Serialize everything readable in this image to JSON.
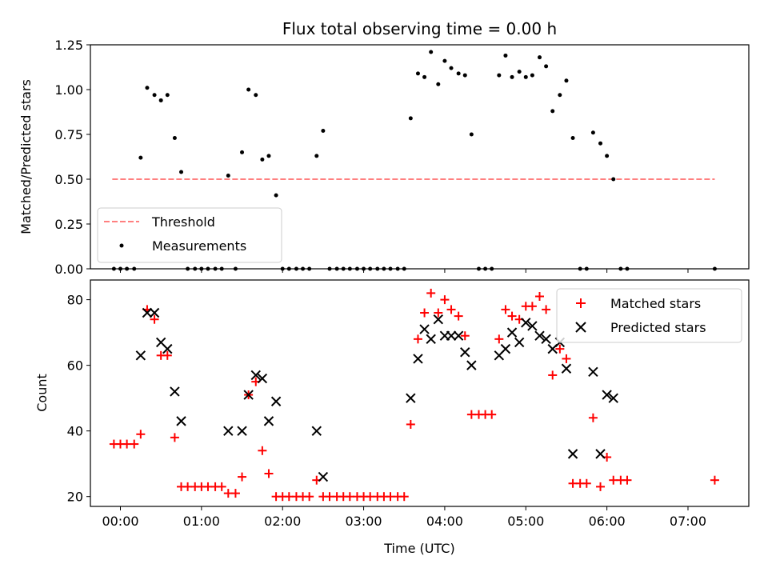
{
  "chart_data": [
    {
      "type": "scatter",
      "title": "Flux total observing time = 0.00 h",
      "xlabel": "",
      "ylabel": "Matched/Predicted stars",
      "xlim": [
        -0.37,
        7.75
      ],
      "ylim": [
        0.0,
        1.25
      ],
      "yticks": [
        "0.00",
        "0.25",
        "0.50",
        "0.75",
        "1.00",
        "1.25"
      ],
      "grid": false,
      "legend": "lower-left",
      "threshold": {
        "name": "Threshold",
        "value": 0.5,
        "x": [
          -0.1,
          7.33
        ],
        "color": "#ff8080"
      },
      "series": [
        {
          "name": "Measurements",
          "color": "#000000",
          "points": [
            [
              -0.08,
              0.0
            ],
            [
              0.0,
              0.0
            ],
            [
              0.08,
              0.0
            ],
            [
              0.17,
              0.0
            ],
            [
              0.25,
              0.62
            ],
            [
              0.33,
              1.01
            ],
            [
              0.42,
              0.97
            ],
            [
              0.5,
              0.94
            ],
            [
              0.58,
              0.97
            ],
            [
              0.67,
              0.73
            ],
            [
              0.75,
              0.54
            ],
            [
              0.83,
              0.0
            ],
            [
              0.92,
              0.0
            ],
            [
              1.0,
              0.0
            ],
            [
              1.08,
              0.0
            ],
            [
              1.17,
              0.0
            ],
            [
              1.25,
              0.0
            ],
            [
              1.33,
              0.52
            ],
            [
              1.42,
              0.0
            ],
            [
              1.5,
              0.65
            ],
            [
              1.58,
              1.0
            ],
            [
              1.67,
              0.97
            ],
            [
              1.75,
              0.61
            ],
            [
              1.83,
              0.63
            ],
            [
              1.92,
              0.41
            ],
            [
              2.0,
              0.0
            ],
            [
              2.08,
              0.0
            ],
            [
              2.17,
              0.0
            ],
            [
              2.25,
              0.0
            ],
            [
              2.33,
              0.0
            ],
            [
              2.42,
              0.63
            ],
            [
              2.5,
              0.77
            ],
            [
              2.58,
              0.0
            ],
            [
              2.67,
              0.0
            ],
            [
              2.75,
              0.0
            ],
            [
              2.83,
              0.0
            ],
            [
              2.92,
              0.0
            ],
            [
              3.0,
              0.0
            ],
            [
              3.08,
              0.0
            ],
            [
              3.17,
              0.0
            ],
            [
              3.25,
              0.0
            ],
            [
              3.33,
              0.0
            ],
            [
              3.42,
              0.0
            ],
            [
              3.5,
              0.0
            ],
            [
              3.58,
              0.84
            ],
            [
              3.67,
              1.09
            ],
            [
              3.75,
              1.07
            ],
            [
              3.83,
              1.21
            ],
            [
              3.92,
              1.03
            ],
            [
              4.0,
              1.16
            ],
            [
              4.08,
              1.12
            ],
            [
              4.17,
              1.09
            ],
            [
              4.25,
              1.08
            ],
            [
              4.33,
              0.75
            ],
            [
              4.42,
              0.0
            ],
            [
              4.5,
              0.0
            ],
            [
              4.58,
              0.0
            ],
            [
              4.67,
              1.08
            ],
            [
              4.75,
              1.19
            ],
            [
              4.83,
              1.07
            ],
            [
              4.92,
              1.1
            ],
            [
              5.0,
              1.07
            ],
            [
              5.08,
              1.08
            ],
            [
              5.17,
              1.18
            ],
            [
              5.25,
              1.13
            ],
            [
              5.33,
              0.88
            ],
            [
              5.42,
              0.97
            ],
            [
              5.5,
              1.05
            ],
            [
              5.58,
              0.73
            ],
            [
              5.67,
              0.0
            ],
            [
              5.75,
              0.0
            ],
            [
              5.83,
              0.76
            ],
            [
              5.92,
              0.7
            ],
            [
              6.0,
              0.63
            ],
            [
              6.08,
              0.5
            ],
            [
              6.17,
              0.0
            ],
            [
              6.25,
              0.0
            ],
            [
              7.33,
              0.0
            ]
          ]
        }
      ]
    },
    {
      "type": "scatter",
      "title": "",
      "xlabel": "Time (UTC)",
      "ylabel": "Count",
      "xlim": [
        -0.37,
        7.75
      ],
      "ylim": [
        17,
        86
      ],
      "yticks": [
        "20",
        "40",
        "60",
        "80"
      ],
      "xticks": [
        "00:00",
        "01:00",
        "02:00",
        "03:00",
        "04:00",
        "05:00",
        "06:00",
        "07:00"
      ],
      "grid": false,
      "legend": "upper-right",
      "series": [
        {
          "name": "Matched stars",
          "marker": "plus",
          "color": "#ff0000",
          "points": [
            [
              -0.08,
              36
            ],
            [
              0.0,
              36
            ],
            [
              0.08,
              36
            ],
            [
              0.17,
              36
            ],
            [
              0.25,
              39
            ],
            [
              0.33,
              77
            ],
            [
              0.42,
              74
            ],
            [
              0.5,
              63
            ],
            [
              0.58,
              63
            ],
            [
              0.67,
              38
            ],
            [
              0.75,
              23
            ],
            [
              0.83,
              23
            ],
            [
              0.92,
              23
            ],
            [
              1.0,
              23
            ],
            [
              1.08,
              23
            ],
            [
              1.17,
              23
            ],
            [
              1.25,
              23
            ],
            [
              1.33,
              21
            ],
            [
              1.42,
              21
            ],
            [
              1.5,
              26
            ],
            [
              1.58,
              51
            ],
            [
              1.67,
              55
            ],
            [
              1.75,
              34
            ],
            [
              1.83,
              27
            ],
            [
              1.92,
              20
            ],
            [
              2.0,
              20
            ],
            [
              2.08,
              20
            ],
            [
              2.17,
              20
            ],
            [
              2.25,
              20
            ],
            [
              2.33,
              20
            ],
            [
              2.42,
              25
            ],
            [
              2.5,
              20
            ],
            [
              2.58,
              20
            ],
            [
              2.67,
              20
            ],
            [
              2.75,
              20
            ],
            [
              2.83,
              20
            ],
            [
              2.92,
              20
            ],
            [
              3.0,
              20
            ],
            [
              3.08,
              20
            ],
            [
              3.17,
              20
            ],
            [
              3.25,
              20
            ],
            [
              3.33,
              20
            ],
            [
              3.42,
              20
            ],
            [
              3.5,
              20
            ],
            [
              3.58,
              42
            ],
            [
              3.67,
              68
            ],
            [
              3.75,
              76
            ],
            [
              3.83,
              82
            ],
            [
              3.92,
              76
            ],
            [
              4.0,
              80
            ],
            [
              4.08,
              77
            ],
            [
              4.17,
              75
            ],
            [
              4.25,
              69
            ],
            [
              4.33,
              45
            ],
            [
              4.42,
              45
            ],
            [
              4.5,
              45
            ],
            [
              4.58,
              45
            ],
            [
              4.67,
              68
            ],
            [
              4.75,
              77
            ],
            [
              4.83,
              75
            ],
            [
              4.92,
              74
            ],
            [
              5.0,
              78
            ],
            [
              5.08,
              78
            ],
            [
              5.17,
              81
            ],
            [
              5.25,
              77
            ],
            [
              5.33,
              57
            ],
            [
              5.42,
              65
            ],
            [
              5.5,
              62
            ],
            [
              5.58,
              24
            ],
            [
              5.67,
              24
            ],
            [
              5.75,
              24
            ],
            [
              5.83,
              44
            ],
            [
              5.92,
              23
            ],
            [
              6.0,
              32
            ],
            [
              6.08,
              25
            ],
            [
              6.17,
              25
            ],
            [
              6.25,
              25
            ],
            [
              7.33,
              25
            ]
          ]
        },
        {
          "name": "Predicted stars",
          "marker": "x",
          "color": "#000000",
          "points": [
            [
              0.25,
              63
            ],
            [
              0.33,
              76
            ],
            [
              0.42,
              76
            ],
            [
              0.5,
              67
            ],
            [
              0.58,
              65
            ],
            [
              0.67,
              52
            ],
            [
              0.75,
              43
            ],
            [
              1.33,
              40
            ],
            [
              1.5,
              40
            ],
            [
              1.58,
              51
            ],
            [
              1.67,
              57
            ],
            [
              1.75,
              56
            ],
            [
              1.83,
              43
            ],
            [
              1.92,
              49
            ],
            [
              2.42,
              40
            ],
            [
              2.5,
              26
            ],
            [
              3.58,
              50
            ],
            [
              3.67,
              62
            ],
            [
              3.75,
              71
            ],
            [
              3.83,
              68
            ],
            [
              3.92,
              74
            ],
            [
              4.0,
              69
            ],
            [
              4.08,
              69
            ],
            [
              4.17,
              69
            ],
            [
              4.25,
              64
            ],
            [
              4.33,
              60
            ],
            [
              4.67,
              63
            ],
            [
              4.75,
              65
            ],
            [
              4.83,
              70
            ],
            [
              4.92,
              67
            ],
            [
              5.0,
              73
            ],
            [
              5.08,
              72
            ],
            [
              5.17,
              69
            ],
            [
              5.25,
              68
            ],
            [
              5.33,
              65
            ],
            [
              5.42,
              67
            ],
            [
              5.5,
              59
            ],
            [
              5.58,
              33
            ],
            [
              5.83,
              58
            ],
            [
              5.92,
              33
            ],
            [
              6.0,
              51
            ],
            [
              6.08,
              50
            ]
          ]
        }
      ]
    }
  ]
}
